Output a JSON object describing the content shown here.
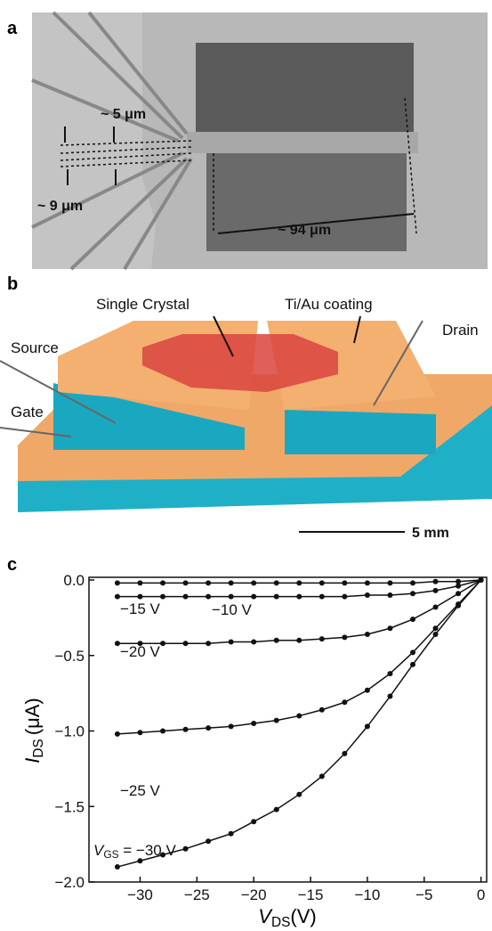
{
  "panel_a": {
    "label": "a",
    "annotations": [
      "~ 5 μm",
      "~ 9 μm",
      "~ 94 μm"
    ]
  },
  "panel_b": {
    "label": "b",
    "labels": [
      "Single Crystal",
      "Ti/Au coating",
      "Source",
      "Drain",
      "Gate"
    ],
    "scale_bar": "5 mm"
  },
  "panel_c": {
    "label": "c",
    "chart_data": {
      "type": "line",
      "x_label": {
        "symbol": "V",
        "subscript": "DS",
        "unit": "(V)"
      },
      "y_label": {
        "symbol": "I",
        "subscript": "DS",
        "unit": "(μA)"
      },
      "xlim": [
        -34.5,
        0.5
      ],
      "ylim": [
        -2.0,
        0.0
      ],
      "xticks": [
        {
          "value": -30,
          "label": "−30"
        },
        {
          "value": -25,
          "label": "−25"
        },
        {
          "value": -20,
          "label": "−20"
        },
        {
          "value": -15,
          "label": "−15"
        },
        {
          "value": -10,
          "label": "−10"
        },
        {
          "value": -5,
          "label": "−5"
        },
        0
      ],
      "yticks": [
        {
          "value": 0,
          "label": "0.0"
        },
        {
          "value": -0.5,
          "label": "−0.5"
        },
        {
          "value": -1.0,
          "label": "−1.0"
        },
        {
          "value": -1.5,
          "label": "−1.5"
        },
        {
          "value": -2.0,
          "label": "−2.0"
        }
      ],
      "x": [
        -32,
        -30,
        -28,
        -26,
        -24,
        -22,
        -20,
        -18,
        -16,
        -14,
        -12,
        -10,
        -8,
        -6,
        -4,
        -2,
        0
      ],
      "series": [
        {
          "name": "−10 V",
          "color": "#111111",
          "values": [
            -0.02,
            -0.02,
            -0.02,
            -0.02,
            -0.02,
            -0.02,
            -0.02,
            -0.02,
            -0.02,
            -0.02,
            -0.02,
            -0.02,
            -0.02,
            -0.02,
            -0.01,
            -0.01,
            0
          ]
        },
        {
          "name": "−15 V",
          "color": "#111111",
          "values": [
            -0.11,
            -0.11,
            -0.11,
            -0.11,
            -0.11,
            -0.11,
            -0.11,
            -0.11,
            -0.11,
            -0.11,
            -0.11,
            -0.1,
            -0.1,
            -0.09,
            -0.07,
            -0.04,
            0
          ]
        },
        {
          "name": "−20 V",
          "color": "#111111",
          "values": [
            -0.42,
            -0.42,
            -0.42,
            -0.42,
            -0.42,
            -0.41,
            -0.41,
            -0.4,
            -0.4,
            -0.39,
            -0.38,
            -0.36,
            -0.32,
            -0.26,
            -0.18,
            -0.09,
            0
          ]
        },
        {
          "name": "−25 V",
          "color": "#111111",
          "values": [
            -1.02,
            -1.01,
            -1.0,
            -0.99,
            -0.98,
            -0.97,
            -0.95,
            -0.93,
            -0.9,
            -0.86,
            -0.81,
            -0.73,
            -0.62,
            -0.48,
            -0.32,
            -0.16,
            0
          ]
        },
        {
          "label_parts": [
            "V",
            "GS",
            " = −30 V"
          ],
          "color": "#111111",
          "values": [
            -1.9,
            -1.86,
            -1.82,
            -1.78,
            -1.73,
            -1.68,
            -1.6,
            -1.52,
            -1.42,
            -1.3,
            -1.15,
            -0.97,
            -0.77,
            -0.56,
            -0.36,
            -0.17,
            0
          ]
        }
      ]
    }
  }
}
